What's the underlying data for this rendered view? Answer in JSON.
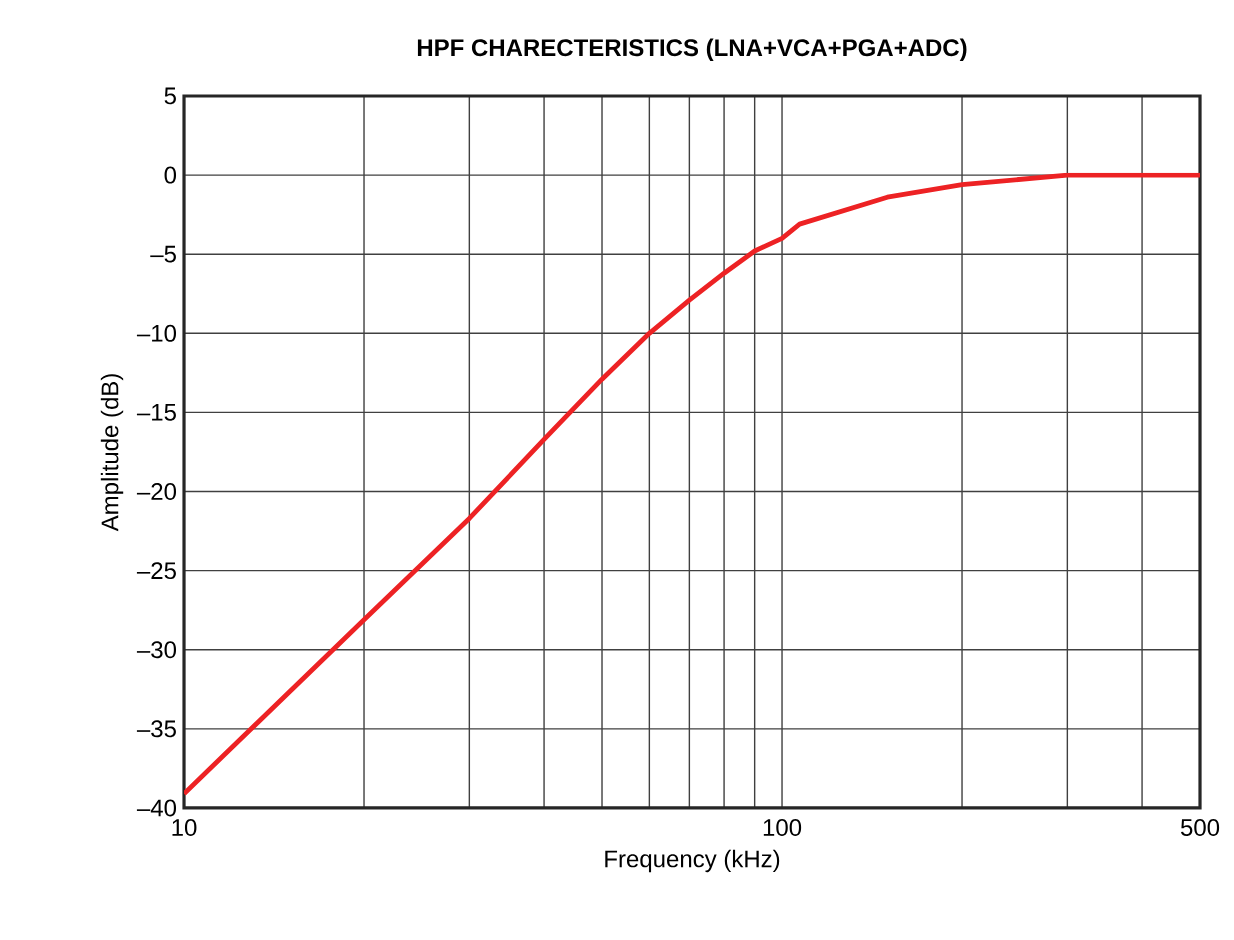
{
  "chart_data": {
    "type": "line",
    "title": "HPF CHARECTERISTICS (LNA+VCA+PGA+ADC)",
    "xlabel": "Frequency (kHz)",
    "ylabel": "Amplitude (dB)",
    "log": "x",
    "grid": true,
    "marker": "none",
    "line_style": "solid",
    "xlim": [
      10,
      500
    ],
    "ylim": [
      -40,
      5
    ],
    "xticks": [
      10,
      {
        "value": 20,
        "label": null
      },
      {
        "value": 30,
        "label": null
      },
      {
        "value": 40,
        "label": null
      },
      {
        "value": 50,
        "label": null
      },
      {
        "value": 60,
        "label": null
      },
      {
        "value": 70,
        "label": null
      },
      {
        "value": 80,
        "label": null
      },
      {
        "value": 90,
        "label": null
      },
      100,
      {
        "value": 200,
        "label": null
      },
      {
        "value": 300,
        "label": null
      },
      {
        "value": 400,
        "label": null
      },
      500
    ],
    "yticks": [
      5,
      0,
      {
        "value": -5,
        "label": "–5"
      },
      {
        "value": -10,
        "label": "–10"
      },
      {
        "value": -15,
        "label": "–15"
      },
      {
        "value": -20,
        "label": "–20"
      },
      {
        "value": -25,
        "label": "–25"
      },
      {
        "value": -30,
        "label": "–30"
      },
      {
        "value": -35,
        "label": "–35"
      },
      {
        "value": -40,
        "label": "–40"
      }
    ],
    "series": [
      {
        "color": "#ed2224",
        "x": [
          10,
          20,
          30,
          40,
          50,
          60,
          70,
          80,
          90,
          100,
          107,
          150,
          200,
          300,
          400,
          500
        ],
        "values": [
          -39.1,
          -28.1,
          -21.7,
          -16.7,
          -12.9,
          -10,
          -7.9,
          -6.2,
          -4.8,
          -4,
          -3.1,
          -1.4,
          -0.6,
          0,
          0,
          0
        ]
      }
    ]
  }
}
